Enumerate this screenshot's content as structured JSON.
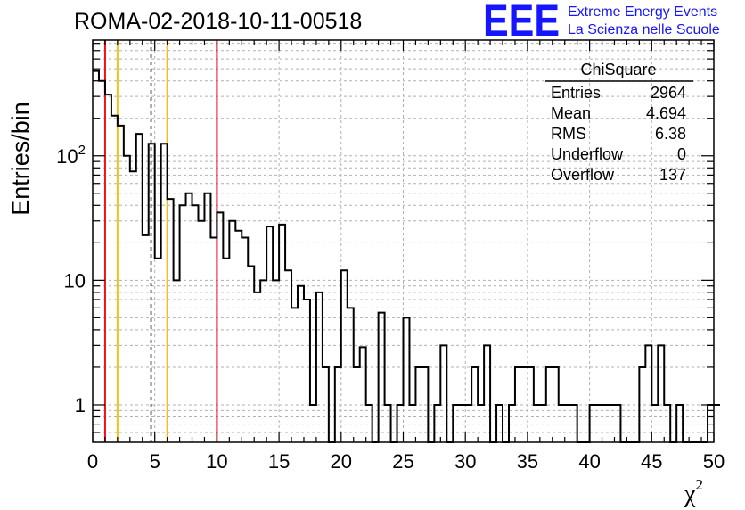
{
  "chart_data": {
    "type": "histogram",
    "title": "ROMA-02-2018-10-11-00518",
    "xlabel": "χ",
    "xlabel_sup": "2",
    "ylabel": "Entries/bin",
    "xlim": [
      0,
      50
    ],
    "ylim": [
      0.5,
      850
    ],
    "yscale": "log",
    "grid": true,
    "bin_width": 0.5,
    "x_ticks": [
      "0",
      "5",
      "10",
      "15",
      "20",
      "25",
      "30",
      "35",
      "40",
      "45",
      "50"
    ],
    "y_ticks": [
      {
        "value": 1,
        "label": "1",
        "sup": ""
      },
      {
        "value": 10,
        "label": "10",
        "sup": ""
      },
      {
        "value": 100,
        "label": "10",
        "sup": "2"
      }
    ],
    "values": [
      480,
      400,
      310,
      210,
      175,
      100,
      75,
      150,
      23,
      125,
      15,
      125,
      45,
      10,
      40,
      50,
      40,
      30,
      50,
      22,
      35,
      15,
      30,
      25,
      22,
      13,
      8,
      10,
      27,
      10,
      28,
      12,
      6,
      9,
      7,
      1,
      8,
      2,
      0,
      2,
      12,
      6,
      2,
      2.9,
      1,
      0,
      5.5,
      1,
      0,
      1,
      5,
      1,
      2,
      2,
      0,
      1,
      3,
      0,
      1,
      1,
      1,
      2,
      1,
      3,
      0,
      1,
      0,
      1,
      2,
      2,
      2,
      1,
      1,
      2,
      2,
      1,
      1,
      1,
      0,
      0,
      1,
      1,
      1,
      1,
      1,
      0,
      0,
      0,
      2,
      3,
      1,
      3,
      1,
      0,
      1,
      0,
      0,
      0,
      0,
      1,
      1
    ],
    "vertical_lines": [
      {
        "x": 1,
        "color": "#e8141d",
        "style": "solid"
      },
      {
        "x": 2,
        "color": "#f0c020",
        "style": "solid"
      },
      {
        "x": 4.7,
        "color": "#000000",
        "style": "dashed"
      },
      {
        "x": 6,
        "color": "#f0c020",
        "style": "solid"
      },
      {
        "x": 10,
        "color": "#e8141d",
        "style": "solid"
      }
    ],
    "stats_box": {
      "name": "ChiSquare",
      "rows": [
        {
          "label": "Entries",
          "value": "2964"
        },
        {
          "label": "Mean",
          "value": "4.694"
        },
        {
          "label": "RMS",
          "value": "6.38"
        },
        {
          "label": "Underflow",
          "value": "0"
        },
        {
          "label": "Overflow",
          "value": "137"
        }
      ]
    }
  },
  "logo": {
    "mark": "EEE",
    "line1": "Extreme Energy Events",
    "line2": "La Scienza nelle Scuole",
    "color": "#1515ff"
  }
}
